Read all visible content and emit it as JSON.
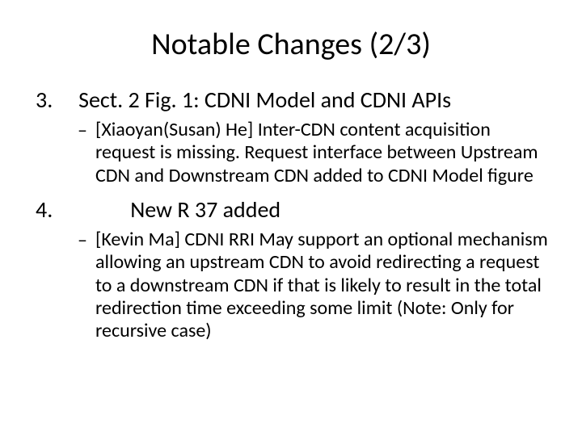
{
  "title": "Notable Changes (2/3)",
  "items": [
    {
      "number": "3.",
      "text": "Sect. 2 Fig. 1: CDNI Model and CDNI APIs",
      "sub": {
        "bullet": "–",
        "text": "[Xiaoyan(Susan) He]  Inter-CDN content acquisition request is missing.  Request interface between Upstream CDN and Downstream CDN added to CDNI Model figure"
      }
    },
    {
      "number": "4.",
      "text": "New R 37 added",
      "sub": {
        "bullet": "–",
        "text": "[Kevin Ma] CDNI RRI May support an optional mechanism allowing an upstream CDN to avoid redirecting a request to a downstream CDN if that is likely to result in the total redirection time exceeding some limit (Note: Only for recursive case)"
      }
    }
  ],
  "style": {
    "background_color": "#ffffff",
    "text_color": "#000000",
    "title_fontsize": 38,
    "level1_fontsize": 28,
    "level2_fontsize": 24,
    "font_family": "Calibri"
  }
}
